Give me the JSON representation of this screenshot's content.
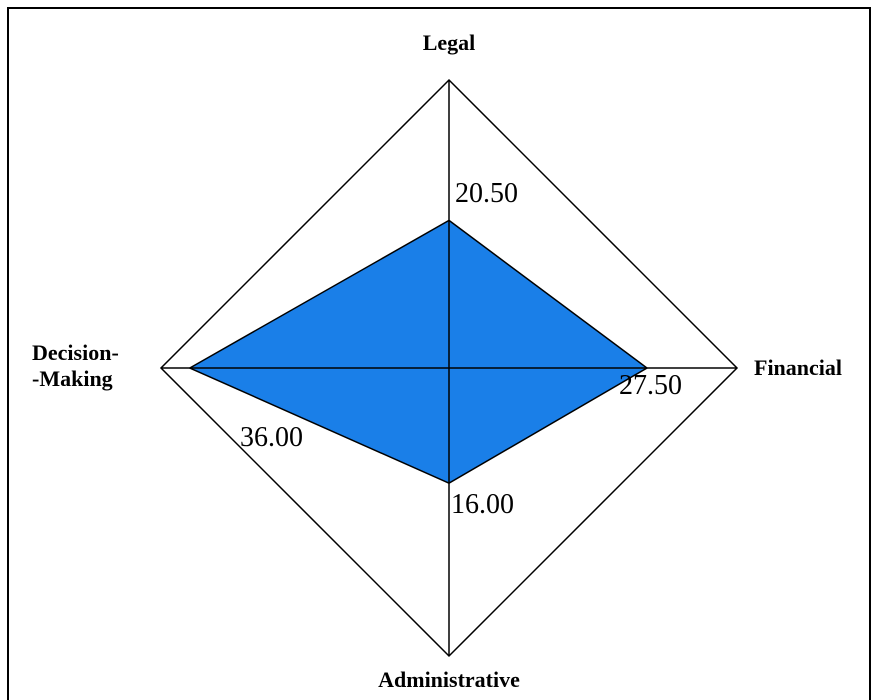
{
  "chart_data": {
    "type": "radar",
    "categories": [
      "Legal",
      "Financial",
      "Administrative",
      "Decision-\n-Making"
    ],
    "values": [
      20.5,
      27.5,
      16,
      36
    ],
    "value_labels": [
      "20.50",
      "27.50",
      "16.00",
      "36.00"
    ],
    "rlim": [
      0,
      40
    ],
    "color": "#1a7fe8"
  }
}
